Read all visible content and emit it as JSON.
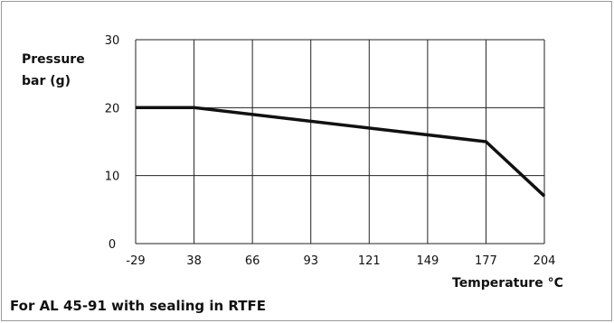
{
  "chart_data": {
    "type": "line",
    "title": "",
    "ylabel_lines": [
      "Pressure",
      "bar (g)"
    ],
    "xlabel": "Temperature °C",
    "caption": "For AL 45-91 with sealing in RTFE",
    "x_ticks": [
      "-29",
      "38",
      "66",
      "93",
      "121",
      "149",
      "177",
      "204"
    ],
    "y_ticks": [
      "0",
      "10",
      "20",
      "30"
    ],
    "ylim": [
      0,
      30
    ],
    "grid": true,
    "series": [
      {
        "x": [
          -29,
          38,
          177,
          204
        ],
        "y": [
          20,
          20,
          15,
          7
        ]
      }
    ]
  }
}
